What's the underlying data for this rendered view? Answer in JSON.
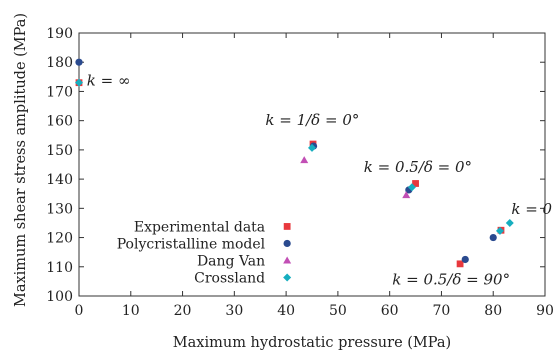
{
  "chart_data": {
    "type": "scatter",
    "title": "",
    "xlabel": "Maximum hydrostatic pressure (MPa)",
    "ylabel": "Maximum shear stress amplitude (MPa)",
    "xlim": [
      0,
      90
    ],
    "ylim": [
      100,
      190
    ],
    "xticks": [
      0,
      10,
      20,
      30,
      40,
      50,
      60,
      70,
      80,
      90
    ],
    "yticks": [
      100,
      110,
      120,
      130,
      140,
      150,
      160,
      170,
      180,
      190
    ],
    "grid": false,
    "legend_position": "lower-left",
    "series": [
      {
        "name": "Experimental data",
        "marker": "square",
        "color": "#e8383d",
        "points": [
          [
            0,
            173
          ],
          [
            45.2,
            152
          ],
          [
            65,
            138.5
          ],
          [
            73.6,
            111
          ],
          [
            81.5,
            122.5
          ]
        ]
      },
      {
        "name": "Polycristalline model",
        "marker": "circle",
        "color": "#2a4a8f",
        "points": [
          [
            0,
            180
          ],
          [
            45.3,
            151.3
          ],
          [
            63.7,
            136.3
          ],
          [
            74.6,
            112.5
          ],
          [
            80,
            120
          ]
        ]
      },
      {
        "name": "Dang Van",
        "marker": "triangle",
        "color": "#c24fb5",
        "points": [
          [
            43.5,
            146.5
          ],
          [
            63.2,
            134.5
          ]
        ]
      },
      {
        "name": "Crossland",
        "marker": "diamond",
        "color": "#16aebf",
        "points": [
          [
            0,
            173
          ],
          [
            45,
            150.7
          ],
          [
            64.3,
            137.2
          ],
          [
            81.3,
            122.3
          ],
          [
            83.2,
            125
          ]
        ]
      }
    ],
    "annotations": [
      {
        "text": "k = ∞",
        "x": 1.5,
        "y": 172
      },
      {
        "text": "k = 1/δ = 0°",
        "x": 36,
        "y": 158.5
      },
      {
        "text": "k = 0.5/δ = 0°",
        "x": 55,
        "y": 142.5
      },
      {
        "text": "k = 0",
        "x": 83.5,
        "y": 128
      },
      {
        "text": "k = 0.5/δ = 90°",
        "x": 60.5,
        "y": 104
      }
    ]
  }
}
